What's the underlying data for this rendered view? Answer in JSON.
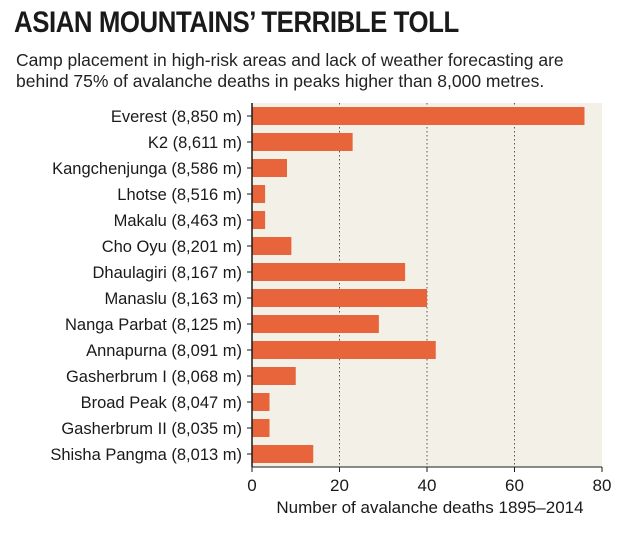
{
  "header": {
    "title": "ASIAN MOUNTAINS’ TERRIBLE TOLL",
    "subtitle": "Camp placement in high-risk areas and lack of weather forecasting are behind 75% of avalanche deaths in peaks higher than 8,000 metres."
  },
  "chart_data": {
    "type": "bar",
    "orientation": "horizontal",
    "title": "ASIAN MOUNTAINS’ TERRIBLE TOLL",
    "subtitle": "Camp placement in high-risk areas and lack of weather forecasting are behind 75% of avalanche deaths in peaks higher than 8,000 metres.",
    "categories": [
      "Everest (8,850 m)",
      "K2 (8,611 m)",
      "Kangchenjunga (8,586 m)",
      "Lhotse (8,516 m)",
      "Makalu (8,463 m)",
      "Cho Oyu (8,201 m)",
      "Dhaulagiri (8,167 m)",
      "Manaslu (8,163 m)",
      "Nanga Parbat (8,125 m)",
      "Annapurna (8,091 m)",
      "Gasherbrum I (8,068 m)",
      "Broad Peak (8,047 m)",
      "Gasherbrum II (8,035 m)",
      "Shisha Pangma (8,013 m)"
    ],
    "values": [
      76,
      23,
      8,
      3,
      3,
      9,
      35,
      40,
      29,
      42,
      10,
      4,
      4,
      14
    ],
    "xlabel": "Number of avalanche deaths 1895–2014",
    "xlim": [
      0,
      80
    ],
    "xticks": [
      "0",
      "20",
      "40",
      "60",
      "80"
    ],
    "grid": "vertical dotted",
    "colors": {
      "bar": "#e8643a",
      "plot_background": "#f3f1e7",
      "grid": "#555555"
    }
  }
}
